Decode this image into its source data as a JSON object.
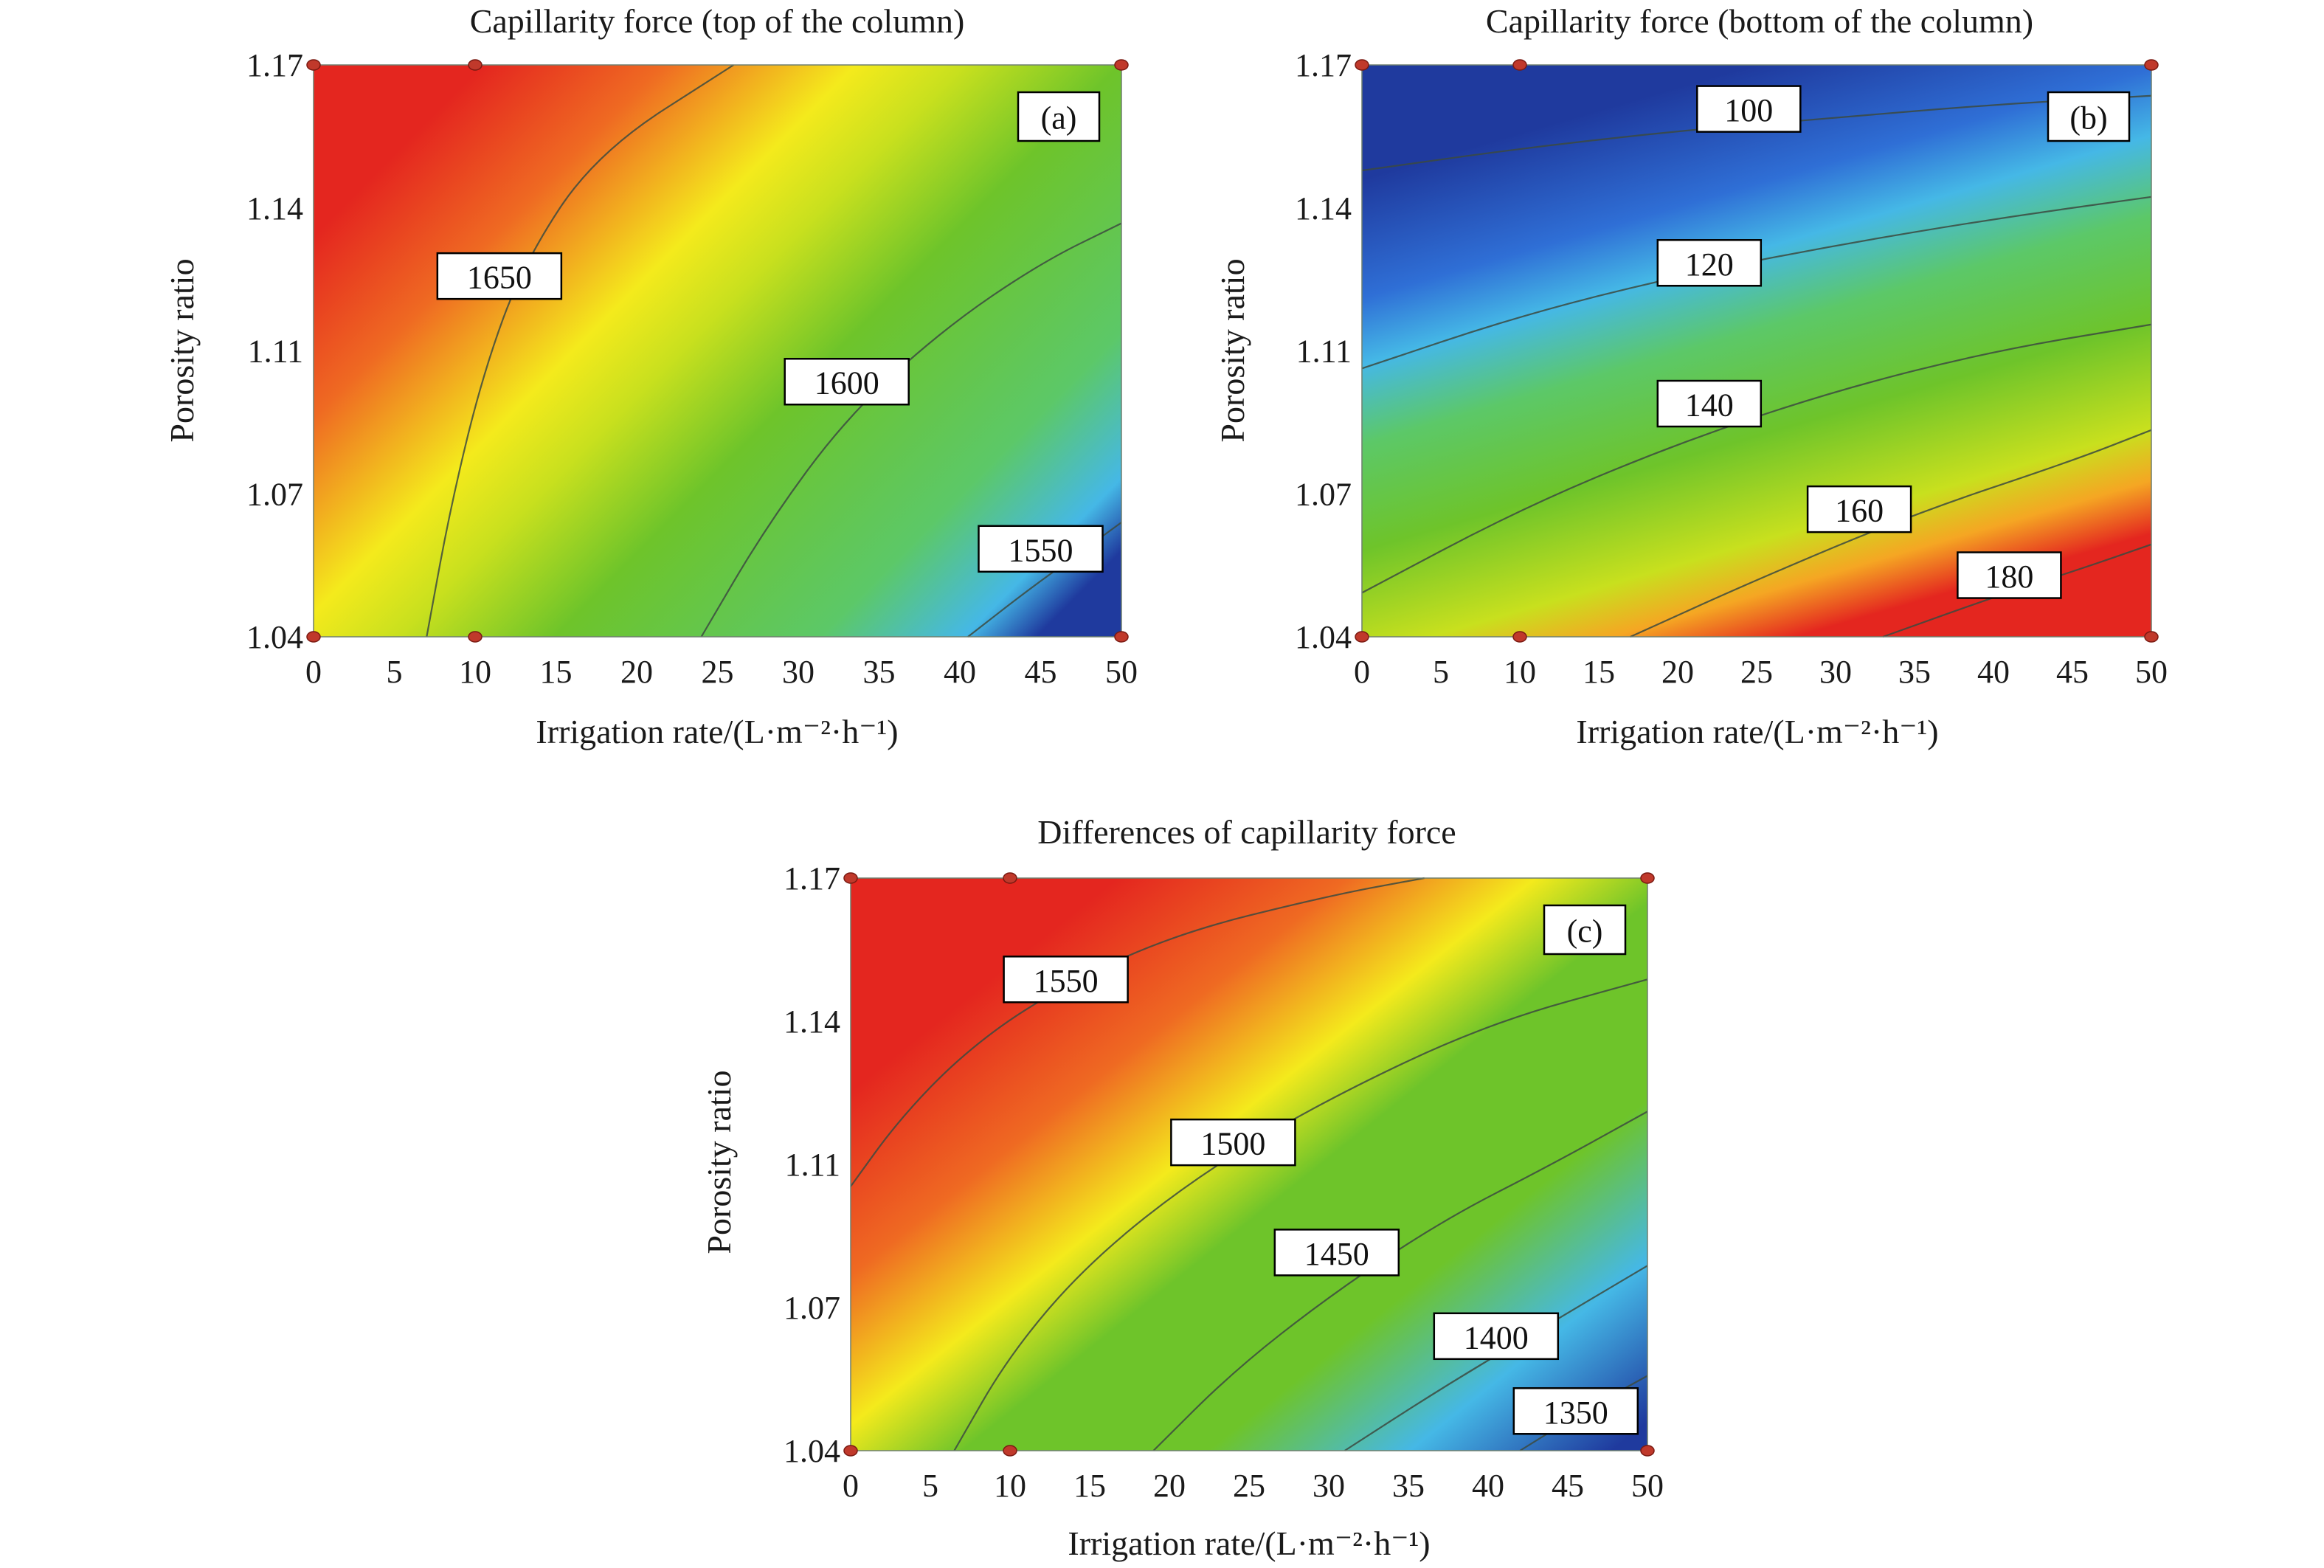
{
  "colors": {
    "colormap": [
      "#1f3a9e",
      "#2f6fd6",
      "#45b8e6",
      "#5cc868",
      "#6ec42a",
      "#c8e01e",
      "#f4ea1c",
      "#f5a623",
      "#ef6a22",
      "#e4261f"
    ],
    "contour_line": "#3c4a40",
    "design_point": "#c0392b",
    "label_box_fill": "#ffffff",
    "label_box_stroke": "#000000"
  },
  "chart_data": [
    {
      "type": "heatmap",
      "panel_tag": "(a)",
      "title": "Capillarity force (top of the column)",
      "xlabel": "Irrigation rate/(L·m⁻²·h⁻¹)",
      "ylabel": "Porosity ratio",
      "xlim": [
        0,
        50
      ],
      "ylim": [
        1.04,
        1.17
      ],
      "x_ticks": [
        "0",
        "5",
        "10",
        "15",
        "20",
        "25",
        "30",
        "35",
        "40",
        "45",
        "50"
      ],
      "y_ticks": [
        "1.04",
        "1.07",
        "1.11",
        "1.14",
        "1.17"
      ],
      "y_tick_values": [
        1.04,
        1.0725,
        1.105,
        1.1375,
        1.17
      ],
      "grid": false,
      "legend": "none",
      "design_points": [
        [
          0,
          1.04
        ],
        [
          10,
          1.04
        ],
        [
          50,
          1.04
        ],
        [
          0,
          1.17
        ],
        [
          10,
          1.17
        ],
        [
          50,
          1.17
        ]
      ],
      "contours": [
        {
          "level": "1650",
          "label_at": [
            11.5,
            1.122
          ],
          "points": [
            [
              7,
              1.04
            ],
            [
              8.5,
              1.07
            ],
            [
              10.5,
              1.1
            ],
            [
              13,
              1.125
            ],
            [
              17.5,
              1.15
            ],
            [
              26,
              1.17
            ]
          ]
        },
        {
          "level": "1600",
          "label_at": [
            33,
            1.098
          ],
          "points": [
            [
              24,
              1.04
            ],
            [
              28,
              1.065
            ],
            [
              33,
              1.09
            ],
            [
              39,
              1.11
            ],
            [
              45,
              1.125
            ],
            [
              50,
              1.134
            ]
          ]
        },
        {
          "level": "1550",
          "label_at": [
            45,
            1.06
          ],
          "points": [
            [
              40.5,
              1.04
            ],
            [
              44,
              1.05
            ],
            [
              47,
              1.058
            ],
            [
              50,
              1.066
            ]
          ]
        }
      ]
    },
    {
      "type": "heatmap",
      "panel_tag": "(b)",
      "title": "Capillarity force (bottom of the column)",
      "xlabel": "Irrigation rate/(L·m⁻²·h⁻¹)",
      "ylabel": "Porosity ratio",
      "xlim": [
        0,
        50
      ],
      "ylim": [
        1.04,
        1.17
      ],
      "x_ticks": [
        "0",
        "5",
        "10",
        "15",
        "20",
        "25",
        "30",
        "35",
        "40",
        "45",
        "50"
      ],
      "y_ticks": [
        "1.04",
        "1.07",
        "1.11",
        "1.14",
        "1.17"
      ],
      "y_tick_values": [
        1.04,
        1.0725,
        1.105,
        1.1375,
        1.17
      ],
      "grid": false,
      "legend": "none",
      "design_points": [
        [
          0,
          1.04
        ],
        [
          10,
          1.04
        ],
        [
          50,
          1.04
        ],
        [
          0,
          1.17
        ],
        [
          10,
          1.17
        ],
        [
          50,
          1.17
        ]
      ],
      "contours": [
        {
          "level": "100",
          "label_at": [
            24.5,
            1.16
          ],
          "points": [
            [
              0,
              1.146
            ],
            [
              10,
              1.151
            ],
            [
              20,
              1.155
            ],
            [
              30,
              1.158
            ],
            [
              40,
              1.161
            ],
            [
              50,
              1.163
            ]
          ]
        },
        {
          "level": "120",
          "label_at": [
            22,
            1.125
          ],
          "points": [
            [
              0,
              1.101
            ],
            [
              10,
              1.113
            ],
            [
              20,
              1.122
            ],
            [
              30,
              1.129
            ],
            [
              40,
              1.135
            ],
            [
              50,
              1.14
            ]
          ]
        },
        {
          "level": "140",
          "label_at": [
            22,
            1.093
          ],
          "points": [
            [
              0,
              1.05
            ],
            [
              10,
              1.069
            ],
            [
              20,
              1.084
            ],
            [
              30,
              1.096
            ],
            [
              40,
              1.105
            ],
            [
              50,
              1.111
            ]
          ]
        },
        {
          "level": "160",
          "label_at": [
            31.5,
            1.069
          ],
          "points": [
            [
              17,
              1.04
            ],
            [
              25,
              1.053
            ],
            [
              35,
              1.068
            ],
            [
              45,
              1.08
            ],
            [
              50,
              1.087
            ]
          ]
        },
        {
          "level": "180",
          "label_at": [
            41,
            1.054
          ],
          "points": [
            [
              33,
              1.04
            ],
            [
              40,
              1.049
            ],
            [
              46,
              1.056
            ],
            [
              50,
              1.061
            ]
          ]
        }
      ]
    },
    {
      "type": "heatmap",
      "panel_tag": "(c)",
      "title": "Differences of capillarity force",
      "xlabel": "Irrigation rate/(L·m⁻²·h⁻¹)",
      "ylabel": "Porosity ratio",
      "xlim": [
        0,
        50
      ],
      "ylim": [
        1.04,
        1.17
      ],
      "x_ticks": [
        "0",
        "5",
        "10",
        "15",
        "20",
        "25",
        "30",
        "35",
        "40",
        "45",
        "50"
      ],
      "y_ticks": [
        "1.04",
        "1.07",
        "1.11",
        "1.14",
        "1.17"
      ],
      "y_tick_values": [
        1.04,
        1.0725,
        1.105,
        1.1375,
        1.17
      ],
      "grid": false,
      "legend": "none",
      "design_points": [
        [
          0,
          1.04
        ],
        [
          10,
          1.04
        ],
        [
          50,
          1.04
        ],
        [
          0,
          1.17
        ],
        [
          10,
          1.17
        ],
        [
          50,
          1.17
        ]
      ],
      "contours": [
        {
          "level": "1550",
          "label_at": [
            13.5,
            1.147
          ],
          "points": [
            [
              0,
              1.1
            ],
            [
              3,
              1.115
            ],
            [
              7,
              1.13
            ],
            [
              12,
              1.143
            ],
            [
              20,
              1.157
            ],
            [
              30,
              1.166
            ],
            [
              36,
              1.17
            ]
          ]
        },
        {
          "level": "1500",
          "label_at": [
            24,
            1.11
          ],
          "points": [
            [
              6.5,
              1.04
            ],
            [
              10,
              1.062
            ],
            [
              15,
              1.083
            ],
            [
              22,
              1.103
            ],
            [
              30,
              1.12
            ],
            [
              40,
              1.137
            ],
            [
              50,
              1.147
            ]
          ]
        },
        {
          "level": "1450",
          "label_at": [
            30.5,
            1.085
          ],
          "points": [
            [
              19,
              1.04
            ],
            [
              24,
              1.058
            ],
            [
              30,
              1.075
            ],
            [
              37,
              1.092
            ],
            [
              44,
              1.105
            ],
            [
              50,
              1.117
            ]
          ]
        },
        {
          "level": "1400",
          "label_at": [
            40.5,
            1.066
          ],
          "points": [
            [
              31,
              1.04
            ],
            [
              37,
              1.054
            ],
            [
              43,
              1.067
            ],
            [
              50,
              1.082
            ]
          ]
        },
        {
          "level": "1350",
          "label_at": [
            45.5,
            1.049
          ],
          "points": [
            [
              42,
              1.04
            ],
            [
              46,
              1.049
            ],
            [
              50,
              1.057
            ]
          ]
        }
      ]
    }
  ]
}
